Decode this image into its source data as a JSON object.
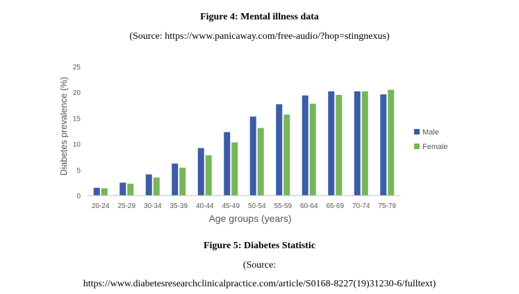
{
  "figure4": {
    "title": "Figure 4: Mental illness data",
    "source": "(Source: https://www.panicaway.com/free-audio/?hop=stingnexus)"
  },
  "figure5": {
    "title": "Figure 5: Diabetes Statistic",
    "source_label": "(Source:",
    "source_url": "https://www.diabetesresearchclinicalpractice.com/article/S0168-8227(19)31230-6/fulltext)"
  },
  "chart_data": {
    "type": "bar",
    "title": "",
    "xlabel": "Age groups (years)",
    "ylabel": "Diabetes prevalence (%)",
    "ylim": [
      0,
      25
    ],
    "yticks": [
      0,
      5,
      10,
      15,
      20,
      25
    ],
    "grid": false,
    "legend_position": "right",
    "categories": [
      "20-24",
      "25-29",
      "30-34",
      "35-39",
      "40-44",
      "45-49",
      "50-54",
      "55-59",
      "60-64",
      "65-69",
      "70-74",
      "75-79"
    ],
    "series": [
      {
        "name": "Male",
        "color": "#3b5ca8",
        "values": [
          1.5,
          2.5,
          4.1,
          6.2,
          9.2,
          12.3,
          15.3,
          17.7,
          19.4,
          20.2,
          20.2,
          19.6
        ]
      },
      {
        "name": "Female",
        "color": "#77b55a",
        "values": [
          1.4,
          2.3,
          3.5,
          5.4,
          7.8,
          10.3,
          13.1,
          15.7,
          17.8,
          19.5,
          20.2,
          20.5
        ]
      }
    ]
  }
}
